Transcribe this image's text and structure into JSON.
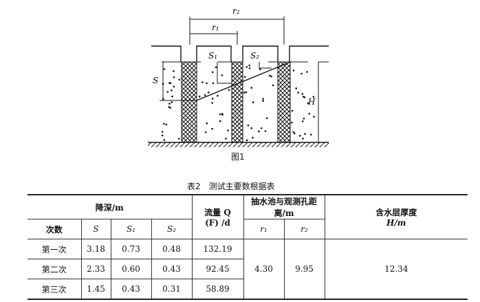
{
  "figure": {
    "caption": "图1",
    "labels": {
      "r2": "r₂",
      "r1": "r₁",
      "s": "S",
      "s1": "S₁",
      "s2": "S₂",
      "h": "H"
    }
  },
  "table": {
    "title": "表2　测试主要数根据表",
    "headers": {
      "drawdown": "降深/m",
      "count": "次数",
      "s": "S",
      "s1": "S₁",
      "s2": "S₂",
      "flow_line1": "流量 Q",
      "flow_line2": "(F) /d",
      "distance": "抽水池与观测孔距离/m",
      "r1": "r₁",
      "r2": "r₂",
      "aquifer_line1": "含水层厚度",
      "aquifer_line2": "H/m"
    },
    "rows": [
      {
        "label": "第一次",
        "s": "3.18",
        "s1": "0.73",
        "s2": "0.48",
        "q": "132.19"
      },
      {
        "label": "第二次",
        "s": "2.33",
        "s1": "0.60",
        "s2": "0.43",
        "q": "92.45"
      },
      {
        "label": "第三次",
        "s": "1.45",
        "s1": "0.43",
        "s2": "0.31",
        "q": "58.89"
      }
    ],
    "shared": {
      "r1": "4.30",
      "r2": "9.95",
      "h": "12.34"
    }
  }
}
